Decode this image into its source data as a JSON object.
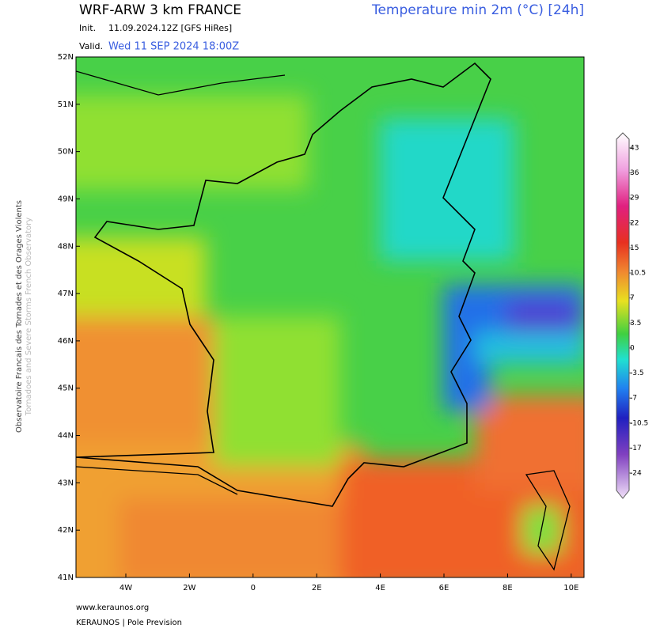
{
  "header": {
    "title": "WRF-ARW 3 km FRANCE",
    "parameter": "Temperature min 2m (°C) [24h]",
    "init_label": "Init.",
    "init_value": "11.09.2024.12Z [GFS HiRes]",
    "valid_label": "Valid.",
    "valid_value": "Wed 11 SEP 2024 18:00Z"
  },
  "map": {
    "lat_ticks": [
      {
        "value": 52,
        "label": "52N"
      },
      {
        "value": 51,
        "label": "51N"
      },
      {
        "value": 50,
        "label": "50N"
      },
      {
        "value": 49,
        "label": "49N"
      },
      {
        "value": 48,
        "label": "48N"
      },
      {
        "value": 47,
        "label": "47N"
      },
      {
        "value": 46,
        "label": "46N"
      },
      {
        "value": 45,
        "label": "45N"
      },
      {
        "value": 44,
        "label": "44N"
      },
      {
        "value": 43,
        "label": "43N"
      },
      {
        "value": 42,
        "label": "42N"
      },
      {
        "value": 41,
        "label": "41N"
      }
    ],
    "lon_ticks": [
      {
        "value": -4,
        "label": "4W"
      },
      {
        "value": -2,
        "label": "2W"
      },
      0,
      {
        "value": 2,
        "label": "2E"
      },
      {
        "value": 4,
        "label": "4E"
      },
      {
        "value": 6,
        "label": "6E"
      },
      {
        "value": 8,
        "label": "8E"
      },
      {
        "value": 10,
        "label": "10E"
      }
    ]
  },
  "colorbar": {
    "ticks": [
      43,
      36,
      29,
      22,
      15,
      10.5,
      7,
      3.5,
      0,
      -3.5,
      -7,
      -10.5,
      -17,
      -24
    ]
  },
  "side": {
    "line1": "Observatoire Francais des Tornades et des Orages Violents",
    "line2": "Tornadoes and Severe Storms French Observatory"
  },
  "footer": {
    "url": "www.keraunos.org",
    "org": "KERAUNOS | Pole Prevision"
  }
}
